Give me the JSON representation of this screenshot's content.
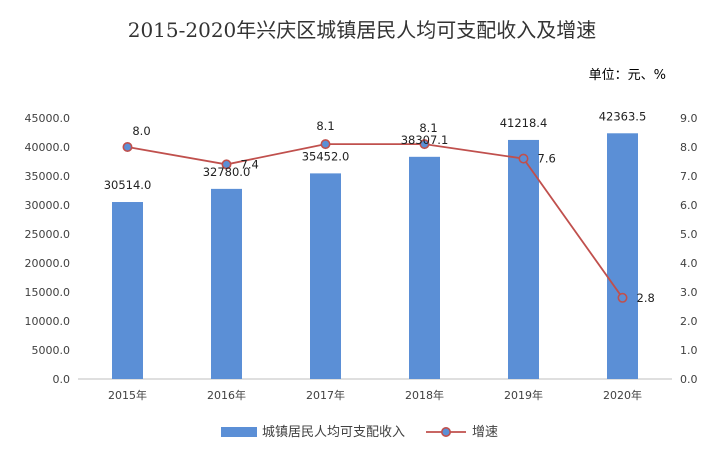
{
  "chart_data": {
    "type": "bar",
    "title": "2015-2020年兴庆区城镇居民人均可支配收入及增速",
    "unit_label": "单位：元、%",
    "categories": [
      "2015年",
      "2016年",
      "2017年",
      "2018年",
      "2019年",
      "2020年"
    ],
    "series": [
      {
        "name": "城镇居民人均可支配收入",
        "type": "bar",
        "axis": "left",
        "color": "#5B8FD6",
        "values": [
          30514.0,
          32780.0,
          35452.0,
          38307.1,
          41218.4,
          42363.5
        ],
        "labels": [
          "30514.0",
          "32780.0",
          "35452.0",
          "38307.1",
          "41218.4",
          "42363.5"
        ]
      },
      {
        "name": "增速",
        "type": "line",
        "axis": "right",
        "color": "#C0504D",
        "values": [
          8.0,
          7.4,
          8.1,
          8.1,
          7.6,
          2.8
        ],
        "labels": [
          "8.0",
          "7.4",
          "8.1",
          "8.1",
          "7.6",
          "2.8"
        ]
      }
    ],
    "y_left": {
      "range": [
        0,
        45000
      ],
      "ticks": [
        "0.0",
        "5000.0",
        "10000.0",
        "15000.0",
        "20000.0",
        "25000.0",
        "30000.0",
        "35000.0",
        "40000.0",
        "45000.0"
      ]
    },
    "y_right": {
      "range": [
        0,
        9
      ],
      "ticks": [
        "0.0",
        "1.0",
        "2.0",
        "3.0",
        "4.0",
        "5.0",
        "6.0",
        "7.0",
        "8.0",
        "9.0"
      ]
    },
    "grid": false,
    "legend_position": "bottom"
  }
}
